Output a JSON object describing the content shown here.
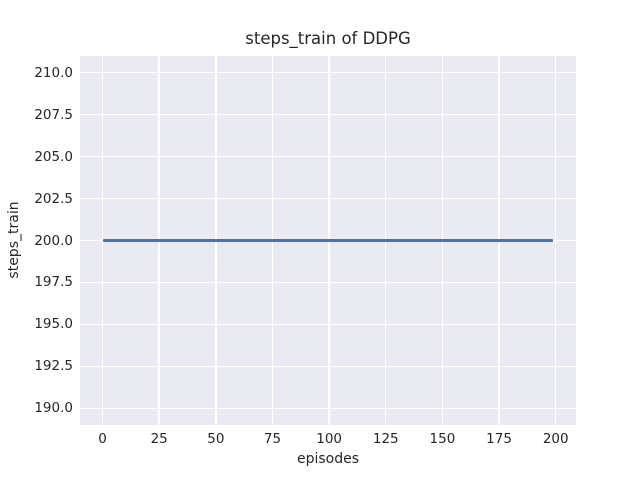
{
  "chart_data": {
    "type": "line",
    "title": "steps_train of DDPG",
    "xlabel": "episodes",
    "ylabel": "steps_train",
    "xlim": [
      -9.95,
      208.95
    ],
    "ylim": [
      189,
      211
    ],
    "x_tick_values": [
      0,
      25,
      50,
      75,
      100,
      125,
      150,
      175,
      200
    ],
    "x_tick_labels": [
      "0",
      "25",
      "50",
      "75",
      "100",
      "125",
      "150",
      "175",
      "200"
    ],
    "y_tick_values": [
      190,
      192.5,
      195,
      197.5,
      200,
      202.5,
      205,
      207.5,
      210
    ],
    "y_tick_labels": [
      "190.0",
      "192.5",
      "195.0",
      "197.5",
      "200.0",
      "202.5",
      "205.0",
      "207.5",
      "210.0"
    ],
    "grid": true,
    "legend": false,
    "series": [
      {
        "name": "steps_train",
        "x": [
          0,
          199
        ],
        "y": [
          200,
          200
        ],
        "note": "constant value 200 for all episodes 0 through 199"
      }
    ],
    "colors": {
      "line": "#4c72b0",
      "plot_background": "#eaeaf2",
      "grid": "#ffffff",
      "text": "#262626",
      "figure_background": "#ffffff"
    }
  }
}
